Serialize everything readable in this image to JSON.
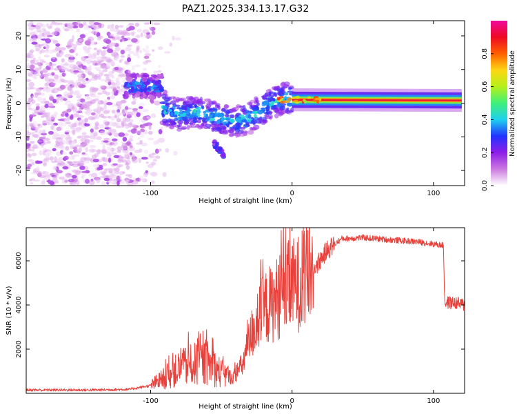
{
  "chart_data": [
    {
      "type": "heatmap",
      "title": "PAZ1.2025.334.13.17.G32",
      "xlabel": "Height of straight line (km)",
      "ylabel": "Frequency (Hz)",
      "xlim": [
        -188,
        122
      ],
      "ylim": [
        -24.5,
        24.5
      ],
      "xticks": [
        -100,
        0,
        100
      ],
      "yticks": [
        20,
        10,
        0,
        -10,
        -20
      ],
      "colorbar": {
        "label": "Normalized spectral amplitude",
        "range": [
          0,
          1
        ],
        "ticks": [
          "0.0",
          "0.2",
          "0.4",
          "0.6",
          "0.8"
        ]
      },
      "features": [
        {
          "name": "noise",
          "x_range": [
            -188,
            -100
          ],
          "f_range": [
            -24,
            24
          ],
          "amplitude": 0.05
        },
        {
          "name": "patch-a",
          "x_range": [
            -118,
            -92
          ],
          "f_center": 5.0,
          "amplitude": 0.35
        },
        {
          "name": "band-b",
          "points": [
            [
              -92,
              -1.5
            ],
            [
              -80,
              -3.5
            ],
            [
              -70,
              -2.5
            ],
            [
              -60,
              -3.5
            ],
            [
              -50,
              -4.5
            ],
            [
              -40,
              -5.5
            ],
            [
              -30,
              -4.5
            ],
            [
              -20,
              -1.5
            ],
            [
              -12,
              0.5
            ],
            [
              -6,
              1.5
            ],
            [
              0,
              1.0
            ]
          ],
          "amplitude": 0.35
        },
        {
          "name": "branch-c",
          "points": [
            [
              -55,
              -12
            ],
            [
              -48,
              -15.5
            ]
          ],
          "amplitude": 0.25
        },
        {
          "name": "steady-line",
          "points": [
            [
              0,
              1.0
            ],
            [
              120,
              0.8
            ]
          ],
          "amplitude": 0.95
        }
      ]
    },
    {
      "type": "line",
      "xlabel": "Height of straight line (km)",
      "ylabel": "SNR (10 * v/v)",
      "xlim": [
        -188,
        122
      ],
      "ylim": [
        0,
        7500
      ],
      "xticks": [
        -100,
        0,
        100
      ],
      "yticks": [
        2000,
        4000,
        6000
      ],
      "series": [
        {
          "name": "SNR",
          "color": "#e8403a",
          "envelope": [
            [
              -188,
              150
            ],
            [
              -140,
              150
            ],
            [
              -115,
              180
            ],
            [
              -100,
              350
            ],
            [
              -90,
              700
            ],
            [
              -80,
              1100
            ],
            [
              -70,
              1300
            ],
            [
              -60,
              1400
            ],
            [
              -50,
              900
            ],
            [
              -42,
              700
            ],
            [
              -35,
              1300
            ],
            [
              -28,
              2800
            ],
            [
              -20,
              3800
            ],
            [
              -12,
              4200
            ],
            [
              -5,
              4700
            ],
            [
              5,
              5000
            ],
            [
              15,
              5600
            ],
            [
              25,
              6500
            ],
            [
              35,
              7000
            ],
            [
              50,
              7050
            ],
            [
              70,
              6950
            ],
            [
              90,
              6850
            ],
            [
              107,
              6700
            ],
            [
              108,
              4100
            ],
            [
              115,
              4100
            ],
            [
              122,
              4000
            ]
          ]
        }
      ]
    },
    {
      "type": "colorbar",
      "colors": [
        "#ffffff",
        "#cc7ae0",
        "#8e1de8",
        "#2233ff",
        "#1ed0ee",
        "#3ef07a",
        "#b6f01a",
        "#fdd614",
        "#ff6000",
        "#ee0a22",
        "#f00a9c"
      ]
    }
  ]
}
